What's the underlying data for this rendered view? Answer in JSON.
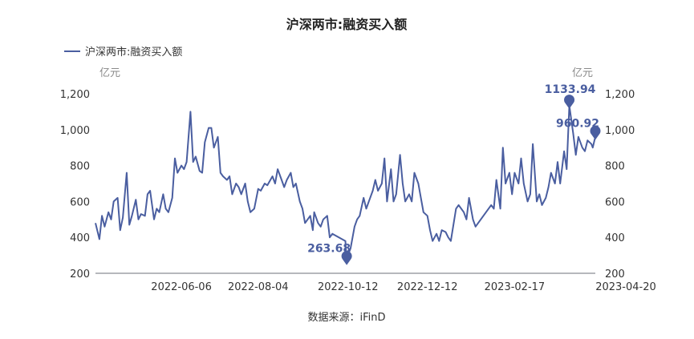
{
  "chart_data": {
    "type": "line",
    "title": "沪深两市:融资买入额",
    "legend": "沪深两市:融资买入额",
    "legend_position": "top-left",
    "unit_left": "亿元",
    "unit_right": "亿元",
    "source": "数据来源：iFinD",
    "color": "#4a5ea0",
    "grid": false,
    "ylim": [
      200,
      1200
    ],
    "yticks": [
      "200",
      "400",
      "600",
      "800",
      "1,000",
      "1,200"
    ],
    "yticks_right": [
      "200",
      "400",
      "600",
      "800",
      "1,000",
      "1,200"
    ],
    "x_range": [
      "2022-04-01",
      "2023-04-20"
    ],
    "xtick_labels": [
      "2022-06-06",
      "2022-08-04",
      "2022-10-12",
      "2022-12-12",
      "2023-02-17",
      "2023-04-20"
    ],
    "annotations": [
      {
        "label": "1133.94",
        "date": "2023-03-31",
        "value": 1133.94,
        "note": "max"
      },
      {
        "label": "960.92",
        "date": "2023-04-20",
        "value": 960.92,
        "note": "last"
      },
      {
        "label": "263.68",
        "date": "2022-10-11",
        "value": 263.68,
        "note": "min"
      }
    ],
    "series": [
      {
        "name": "沪深两市:融资买入额",
        "points": [
          [
            "2022-04-01",
            480
          ],
          [
            "2022-04-04",
            390
          ],
          [
            "2022-04-06",
            520
          ],
          [
            "2022-04-08",
            460
          ],
          [
            "2022-04-11",
            540
          ],
          [
            "2022-04-13",
            500
          ],
          [
            "2022-04-15",
            600
          ],
          [
            "2022-04-18",
            620
          ],
          [
            "2022-04-20",
            440
          ],
          [
            "2022-04-22",
            510
          ],
          [
            "2022-04-25",
            760
          ],
          [
            "2022-04-27",
            470
          ],
          [
            "2022-04-29",
            520
          ],
          [
            "2022-05-02",
            610
          ],
          [
            "2022-05-04",
            500
          ],
          [
            "2022-05-06",
            530
          ],
          [
            "2022-05-09",
            520
          ],
          [
            "2022-05-11",
            640
          ],
          [
            "2022-05-13",
            660
          ],
          [
            "2022-05-16",
            500
          ],
          [
            "2022-05-18",
            560
          ],
          [
            "2022-05-20",
            540
          ],
          [
            "2022-05-23",
            640
          ],
          [
            "2022-05-25",
            560
          ],
          [
            "2022-05-27",
            540
          ],
          [
            "2022-05-30",
            620
          ],
          [
            "2022-06-01",
            840
          ],
          [
            "2022-06-03",
            760
          ],
          [
            "2022-06-06",
            800
          ],
          [
            "2022-06-08",
            780
          ],
          [
            "2022-06-10",
            820
          ],
          [
            "2022-06-13",
            1100
          ],
          [
            "2022-06-15",
            820
          ],
          [
            "2022-06-17",
            850
          ],
          [
            "2022-06-20",
            770
          ],
          [
            "2022-06-22",
            760
          ],
          [
            "2022-06-24",
            930
          ],
          [
            "2022-06-27",
            1010
          ],
          [
            "2022-06-29",
            1010
          ],
          [
            "2022-07-01",
            900
          ],
          [
            "2022-07-04",
            960
          ],
          [
            "2022-07-06",
            760
          ],
          [
            "2022-07-08",
            740
          ],
          [
            "2022-07-11",
            720
          ],
          [
            "2022-07-13",
            740
          ],
          [
            "2022-07-15",
            640
          ],
          [
            "2022-07-18",
            700
          ],
          [
            "2022-07-20",
            680
          ],
          [
            "2022-07-22",
            640
          ],
          [
            "2022-07-25",
            700
          ],
          [
            "2022-07-27",
            600
          ],
          [
            "2022-07-29",
            540
          ],
          [
            "2022-08-01",
            560
          ],
          [
            "2022-08-04",
            670
          ],
          [
            "2022-08-06",
            660
          ],
          [
            "2022-08-09",
            700
          ],
          [
            "2022-08-11",
            690
          ],
          [
            "2022-08-15",
            740
          ],
          [
            "2022-08-17",
            700
          ],
          [
            "2022-08-19",
            780
          ],
          [
            "2022-08-22",
            720
          ],
          [
            "2022-08-24",
            680
          ],
          [
            "2022-08-26",
            720
          ],
          [
            "2022-08-29",
            760
          ],
          [
            "2022-08-31",
            680
          ],
          [
            "2022-09-02",
            700
          ],
          [
            "2022-09-05",
            600
          ],
          [
            "2022-09-07",
            560
          ],
          [
            "2022-09-09",
            480
          ],
          [
            "2022-09-13",
            520
          ],
          [
            "2022-09-15",
            440
          ],
          [
            "2022-09-16",
            540
          ],
          [
            "2022-09-19",
            480
          ],
          [
            "2022-09-21",
            460
          ],
          [
            "2022-09-23",
            500
          ],
          [
            "2022-09-26",
            520
          ],
          [
            "2022-09-28",
            400
          ],
          [
            "2022-09-30",
            420
          ],
          [
            "2022-10-10",
            380
          ],
          [
            "2022-10-11",
            263.68
          ],
          [
            "2022-10-12",
            300
          ],
          [
            "2022-10-14",
            340
          ],
          [
            "2022-10-17",
            460
          ],
          [
            "2022-10-19",
            500
          ],
          [
            "2022-10-21",
            520
          ],
          [
            "2022-10-24",
            620
          ],
          [
            "2022-10-26",
            560
          ],
          [
            "2022-10-28",
            600
          ],
          [
            "2022-10-31",
            660
          ],
          [
            "2022-11-02",
            720
          ],
          [
            "2022-11-04",
            660
          ],
          [
            "2022-11-07",
            700
          ],
          [
            "2022-11-09",
            840
          ],
          [
            "2022-11-11",
            600
          ],
          [
            "2022-11-14",
            780
          ],
          [
            "2022-11-16",
            600
          ],
          [
            "2022-11-18",
            640
          ],
          [
            "2022-11-21",
            860
          ],
          [
            "2022-11-23",
            700
          ],
          [
            "2022-11-25",
            600
          ],
          [
            "2022-11-28",
            640
          ],
          [
            "2022-11-30",
            600
          ],
          [
            "2022-12-02",
            760
          ],
          [
            "2022-12-05",
            700
          ],
          [
            "2022-12-07",
            620
          ],
          [
            "2022-12-09",
            540
          ],
          [
            "2022-12-12",
            520
          ],
          [
            "2022-12-14",
            440
          ],
          [
            "2022-12-16",
            380
          ],
          [
            "2022-12-19",
            420
          ],
          [
            "2022-12-21",
            380
          ],
          [
            "2022-12-23",
            440
          ],
          [
            "2022-12-26",
            430
          ],
          [
            "2022-12-28",
            400
          ],
          [
            "2022-12-30",
            380
          ],
          [
            "2023-01-03",
            560
          ],
          [
            "2023-01-05",
            580
          ],
          [
            "2023-01-09",
            540
          ],
          [
            "2023-01-11",
            500
          ],
          [
            "2023-01-13",
            620
          ],
          [
            "2023-01-16",
            500
          ],
          [
            "2023-01-18",
            460
          ],
          [
            "2023-01-30",
            580
          ],
          [
            "2023-02-01",
            560
          ],
          [
            "2023-02-03",
            720
          ],
          [
            "2023-02-06",
            560
          ],
          [
            "2023-02-08",
            900
          ],
          [
            "2023-02-10",
            700
          ],
          [
            "2023-02-13",
            760
          ],
          [
            "2023-02-15",
            640
          ],
          [
            "2023-02-17",
            760
          ],
          [
            "2023-02-20",
            700
          ],
          [
            "2023-02-22",
            840
          ],
          [
            "2023-02-24",
            700
          ],
          [
            "2023-02-27",
            600
          ],
          [
            "2023-03-01",
            640
          ],
          [
            "2023-03-03",
            920
          ],
          [
            "2023-03-06",
            600
          ],
          [
            "2023-03-08",
            640
          ],
          [
            "2023-03-10",
            580
          ],
          [
            "2023-03-13",
            620
          ],
          [
            "2023-03-15",
            680
          ],
          [
            "2023-03-17",
            760
          ],
          [
            "2023-03-20",
            700
          ],
          [
            "2023-03-22",
            820
          ],
          [
            "2023-03-24",
            700
          ],
          [
            "2023-03-27",
            880
          ],
          [
            "2023-03-29",
            780
          ],
          [
            "2023-03-31",
            1133.94
          ],
          [
            "2023-04-03",
            980
          ],
          [
            "2023-04-05",
            860
          ],
          [
            "2023-04-07",
            960
          ],
          [
            "2023-04-10",
            900
          ],
          [
            "2023-04-12",
            880
          ],
          [
            "2023-04-14",
            940
          ],
          [
            "2023-04-17",
            920
          ],
          [
            "2023-04-18",
            900
          ],
          [
            "2023-04-20",
            960.92
          ]
        ]
      }
    ]
  }
}
